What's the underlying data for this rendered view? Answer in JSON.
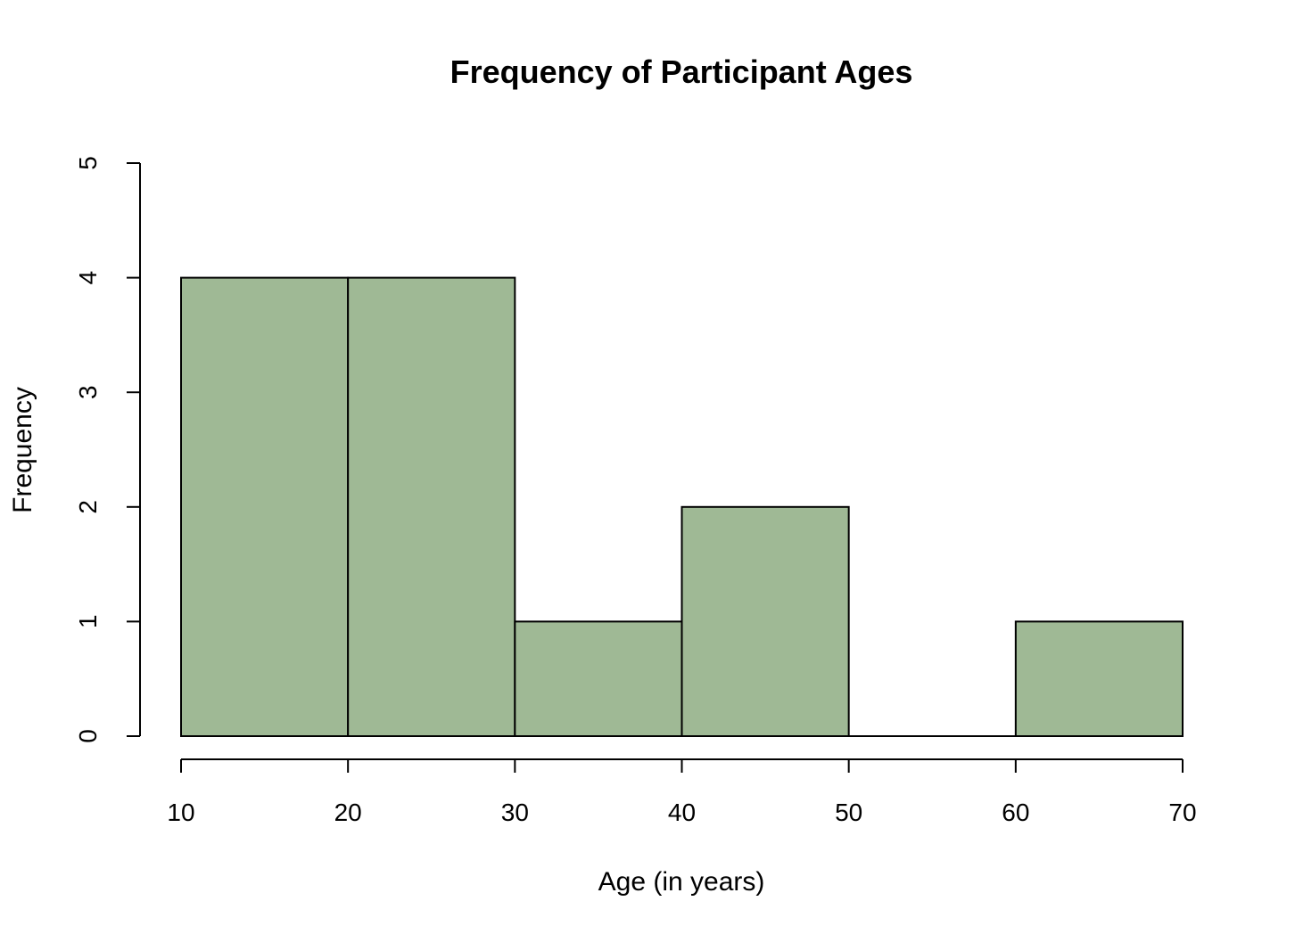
{
  "chart_data": {
    "type": "bar",
    "title": "Frequency of Participant Ages",
    "xlabel": "Age (in years)",
    "ylabel": "Frequency",
    "bins": [
      {
        "start": 10,
        "end": 20,
        "count": 4
      },
      {
        "start": 20,
        "end": 30,
        "count": 4
      },
      {
        "start": 30,
        "end": 40,
        "count": 1
      },
      {
        "start": 40,
        "end": 50,
        "count": 2
      },
      {
        "start": 50,
        "end": 60,
        "count": 0
      },
      {
        "start": 60,
        "end": 70,
        "count": 1
      }
    ],
    "xlim": [
      10,
      70
    ],
    "ylim": [
      0,
      5
    ],
    "x_ticks": [
      10,
      20,
      30,
      40,
      50,
      60,
      70
    ],
    "y_ticks": [
      0,
      1,
      2,
      3,
      4,
      5
    ],
    "bar_color": "#9fb995",
    "edge_color": "#000000",
    "grid": false
  }
}
